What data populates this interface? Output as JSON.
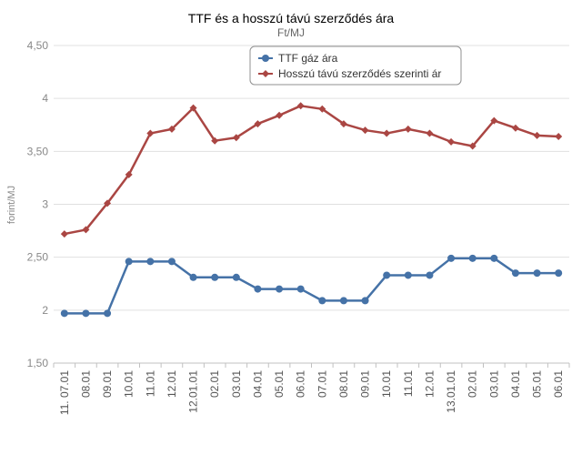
{
  "chart_data": {
    "type": "line",
    "title": "TTF és a hosszú távú szerződés ára",
    "subtitle": "Ft/MJ",
    "ylabel": "forint/MJ",
    "xlabel": "",
    "ylim": [
      1.5,
      4.5
    ],
    "yticks": [
      1.5,
      2,
      2.5,
      3,
      3.5,
      4,
      4.5
    ],
    "ytick_labels": [
      "1,50",
      "2",
      "2,50",
      "3",
      "3,50",
      "4",
      "4,50"
    ],
    "grid": true,
    "legend_position": "top-center",
    "categories": [
      "11. 07.01",
      "08.01",
      "09.01",
      "10.01",
      "11.01",
      "12.01",
      "12.01.01",
      "02.01",
      "03.01",
      "04.01",
      "05.01",
      "06.01",
      "07.01",
      "08.01",
      "09.01",
      "10.01",
      "11.01",
      "12.01",
      "13.01.01",
      "02.01",
      "03.01",
      "04.01",
      "05.01",
      "06.01"
    ],
    "series": [
      {
        "name": "TTF gáz ára",
        "color": "#4572a7",
        "marker": "circle",
        "values": [
          1.97,
          1.97,
          1.97,
          2.46,
          2.46,
          2.46,
          2.31,
          2.31,
          2.31,
          2.2,
          2.2,
          2.2,
          2.09,
          2.09,
          2.09,
          2.33,
          2.33,
          2.33,
          2.49,
          2.49,
          2.49,
          2.35,
          2.35,
          2.35
        ]
      },
      {
        "name": "Hosszú távú szerződés szerinti ár",
        "color": "#aa4643",
        "marker": "diamond",
        "values": [
          2.72,
          2.76,
          3.01,
          3.28,
          3.67,
          3.71,
          3.91,
          3.6,
          3.63,
          3.76,
          3.84,
          3.93,
          3.9,
          3.76,
          3.7,
          3.67,
          3.71,
          3.67,
          3.59,
          3.55,
          3.79,
          3.72,
          3.65,
          3.64
        ]
      }
    ]
  }
}
